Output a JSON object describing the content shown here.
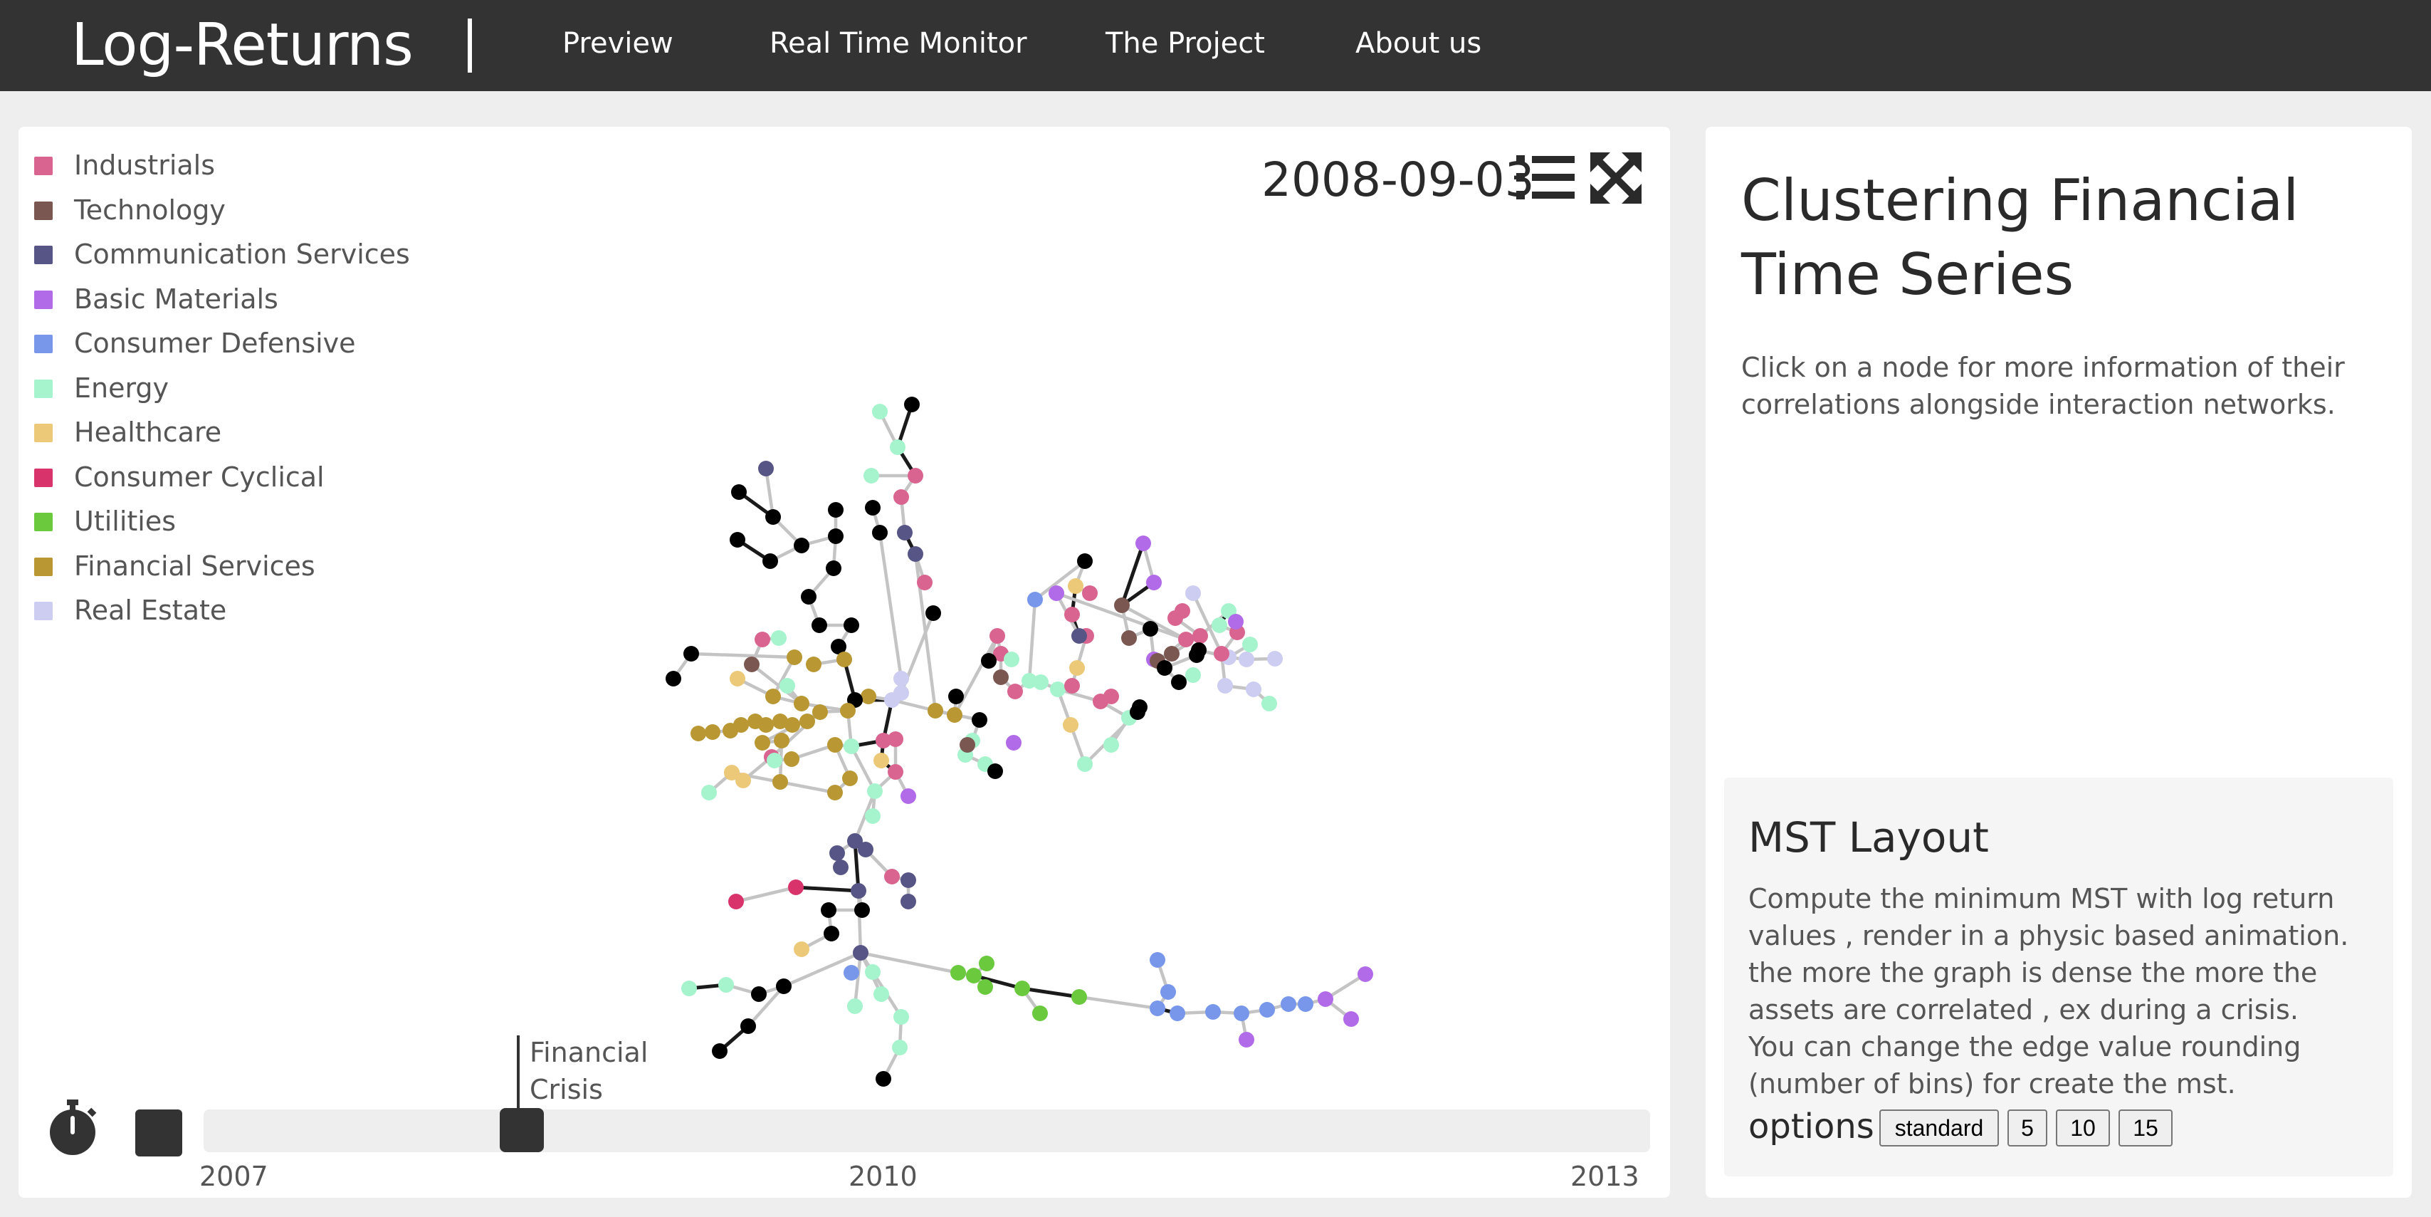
{
  "app": {
    "title": "Log-Returns",
    "nav": [
      "Preview",
      "Real Time Monitor",
      "The Project",
      "About us"
    ]
  },
  "legend": [
    {
      "label": "Industrials",
      "color": "#d9648f"
    },
    {
      "label": "Technology",
      "color": "#7b5752"
    },
    {
      "label": "Communication Services",
      "color": "#565585"
    },
    {
      "label": "Basic Materials",
      "color": "#b16ae8"
    },
    {
      "label": "Consumer Defensive",
      "color": "#7897ea"
    },
    {
      "label": "Energy",
      "color": "#a6f4cd"
    },
    {
      "label": "Healthcare",
      "color": "#ecc978"
    },
    {
      "label": "Consumer Cyclical",
      "color": "#d9336c"
    },
    {
      "label": "Utilities",
      "color": "#6bc93e"
    },
    {
      "label": "Financial Services",
      "color": "#b99733"
    },
    {
      "label": "Real Estate",
      "color": "#cccdf1"
    }
  ],
  "graph": {
    "date": "2008-09-03"
  },
  "timeline": {
    "event_label": "Financial Crisis",
    "ticks": [
      "2007",
      "2010",
      "2013"
    ],
    "position_fraction": 0.22
  },
  "info": {
    "title": "Clustering Financial Time Series",
    "text": "Click on a node for more information of their correlations alongside interaction networks."
  },
  "mst": {
    "title": "MST Layout",
    "lines": [
      "Compute the minimum MST with log return values , render in a physic based animation.",
      "the more the graph is dense the more the assets are correlated , ex during a crisis.",
      "You can change the edge value rounding (number of bins) for create the mst."
    ],
    "options_label": "options :",
    "options": [
      "standard",
      "5",
      "10",
      "15"
    ]
  }
}
